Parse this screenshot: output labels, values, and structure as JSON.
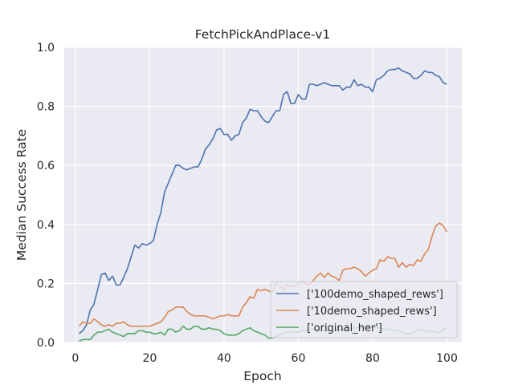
{
  "chart_data": {
    "type": "line",
    "title": "FetchPickAndPlace-v1",
    "xlabel": "Epoch",
    "ylabel": "Median Success Rate",
    "xlim": [
      -3,
      104
    ],
    "ylim": [
      0,
      1.0
    ],
    "xticks": [
      0,
      20,
      40,
      60,
      80,
      100
    ],
    "yticks": [
      0.0,
      0.2,
      0.4,
      0.6,
      0.8,
      1.0
    ],
    "xtick_labels": [
      "0",
      "20",
      "40",
      "60",
      "80",
      "100"
    ],
    "ytick_labels": [
      "0.0",
      "0.2",
      "0.4",
      "0.6",
      "0.8",
      "1.0"
    ],
    "grid": true,
    "legend_position": "bottom-right",
    "x": [
      1,
      2,
      3,
      4,
      5,
      6,
      7,
      8,
      9,
      10,
      11,
      12,
      13,
      14,
      15,
      16,
      17,
      18,
      19,
      20,
      21,
      22,
      23,
      24,
      25,
      26,
      27,
      28,
      29,
      30,
      31,
      32,
      33,
      34,
      35,
      36,
      37,
      38,
      39,
      40,
      41,
      42,
      43,
      44,
      45,
      46,
      47,
      48,
      49,
      50,
      51,
      52,
      53,
      54,
      55,
      56,
      57,
      58,
      59,
      60,
      61,
      62,
      63,
      64,
      65,
      66,
      67,
      68,
      69,
      70,
      71,
      72,
      73,
      74,
      75,
      76,
      77,
      78,
      79,
      80,
      81,
      82,
      83,
      84,
      85,
      86,
      87,
      88,
      89,
      90,
      91,
      92,
      93,
      94,
      95,
      96,
      97,
      98,
      99,
      100
    ],
    "series": [
      {
        "name": "['100demo_shaped_rews']",
        "color": "#4c72b0",
        "values": [
          0.03,
          0.04,
          0.06,
          0.11,
          0.13,
          0.18,
          0.23,
          0.235,
          0.21,
          0.225,
          0.195,
          0.195,
          0.22,
          0.25,
          0.29,
          0.33,
          0.32,
          0.335,
          0.33,
          0.335,
          0.345,
          0.4,
          0.44,
          0.51,
          0.54,
          0.57,
          0.6,
          0.6,
          0.59,
          0.585,
          0.59,
          0.595,
          0.595,
          0.62,
          0.655,
          0.67,
          0.69,
          0.72,
          0.725,
          0.705,
          0.705,
          0.685,
          0.7,
          0.705,
          0.745,
          0.76,
          0.79,
          0.785,
          0.785,
          0.765,
          0.75,
          0.745,
          0.765,
          0.785,
          0.785,
          0.84,
          0.85,
          0.81,
          0.81,
          0.84,
          0.825,
          0.825,
          0.875,
          0.875,
          0.87,
          0.875,
          0.88,
          0.875,
          0.87,
          0.87,
          0.87,
          0.855,
          0.865,
          0.865,
          0.89,
          0.87,
          0.875,
          0.865,
          0.865,
          0.85,
          0.89,
          0.895,
          0.905,
          0.92,
          0.925,
          0.925,
          0.93,
          0.92,
          0.915,
          0.91,
          0.895,
          0.895,
          0.905,
          0.92,
          0.915,
          0.915,
          0.905,
          0.9,
          0.88,
          0.875
        ]
      },
      {
        "name": "['10demo_shaped_rews']",
        "color": "#dd8452",
        "values": [
          0.055,
          0.07,
          0.065,
          0.065,
          0.08,
          0.07,
          0.06,
          0.055,
          0.06,
          0.055,
          0.065,
          0.065,
          0.07,
          0.06,
          0.055,
          0.055,
          0.055,
          0.055,
          0.055,
          0.055,
          0.06,
          0.065,
          0.07,
          0.085,
          0.105,
          0.11,
          0.12,
          0.12,
          0.12,
          0.105,
          0.095,
          0.09,
          0.09,
          0.09,
          0.09,
          0.085,
          0.08,
          0.085,
          0.09,
          0.09,
          0.095,
          0.09,
          0.09,
          0.09,
          0.12,
          0.135,
          0.155,
          0.15,
          0.18,
          0.175,
          0.18,
          0.175,
          0.17,
          0.2,
          0.19,
          0.18,
          0.195,
          0.19,
          0.19,
          0.2,
          0.205,
          0.2,
          0.195,
          0.21,
          0.225,
          0.235,
          0.22,
          0.235,
          0.225,
          0.22,
          0.21,
          0.245,
          0.25,
          0.25,
          0.255,
          0.25,
          0.24,
          0.225,
          0.235,
          0.245,
          0.25,
          0.28,
          0.275,
          0.29,
          0.285,
          0.285,
          0.255,
          0.27,
          0.255,
          0.265,
          0.26,
          0.28,
          0.275,
          0.3,
          0.315,
          0.36,
          0.395,
          0.405,
          0.395,
          0.375
        ]
      },
      {
        "name": "['original_her']",
        "color": "#55a868",
        "values": [
          0.005,
          0.01,
          0.01,
          0.01,
          0.025,
          0.035,
          0.035,
          0.04,
          0.045,
          0.035,
          0.03,
          0.025,
          0.02,
          0.03,
          0.03,
          0.03,
          0.04,
          0.04,
          0.035,
          0.035,
          0.03,
          0.03,
          0.035,
          0.025,
          0.045,
          0.045,
          0.035,
          0.04,
          0.055,
          0.045,
          0.045,
          0.055,
          0.055,
          0.045,
          0.045,
          0.05,
          0.045,
          0.045,
          0.04,
          0.03,
          0.025,
          0.025,
          0.025,
          0.03,
          0.04,
          0.045,
          0.05,
          0.04,
          0.035,
          0.03,
          0.025,
          0.015,
          0.015,
          0.02,
          0.025,
          0.03,
          0.035,
          0.035,
          0.035,
          0.035,
          0.04,
          0.04,
          0.045,
          0.045,
          0.045,
          0.04,
          0.04,
          0.04,
          0.04,
          0.04,
          0.045,
          0.045,
          0.045,
          0.045,
          0.05,
          0.05,
          0.05,
          0.055,
          0.055,
          0.055,
          0.05,
          0.05,
          0.045,
          0.045,
          0.045,
          0.04,
          0.04,
          0.035,
          0.03,
          0.03,
          0.035,
          0.04,
          0.045,
          0.04,
          0.035,
          0.04,
          0.035,
          0.035,
          0.045,
          0.05
        ]
      }
    ]
  }
}
